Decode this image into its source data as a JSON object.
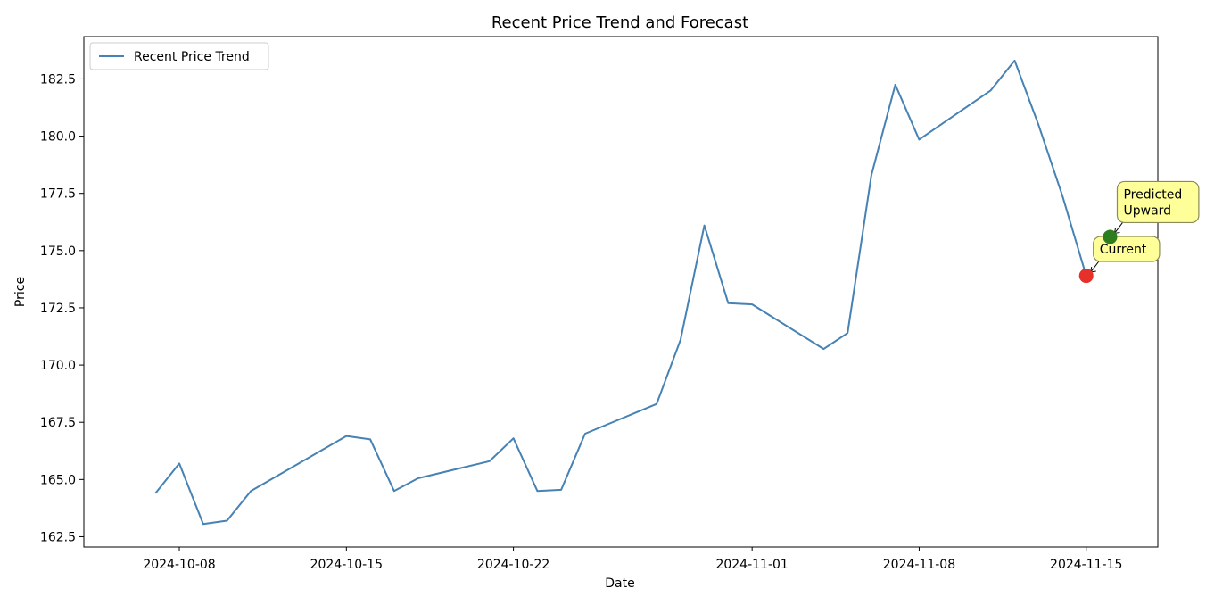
{
  "chart_data": {
    "type": "line",
    "title": "Recent Price Trend and Forecast",
    "xlabel": "Date",
    "ylabel": "Price",
    "x_range": [
      "2024-10-04",
      "2024-11-18"
    ],
    "ylim": [
      162.05,
      184.35
    ],
    "x_ticks": [
      "2024-10-08",
      "2024-10-15",
      "2024-10-22",
      "2024-11-01",
      "2024-11-08",
      "2024-11-15"
    ],
    "y_ticks": [
      "162.5",
      "165.0",
      "167.5",
      "170.0",
      "172.5",
      "175.0",
      "177.5",
      "180.0",
      "182.5"
    ],
    "grid": false,
    "legend": {
      "placement": "upper-left",
      "entries": [
        "Recent Price Trend"
      ]
    },
    "series": [
      {
        "name": "Recent Price Trend",
        "color": "#4682b4",
        "points": [
          [
            "2024-10-07",
            164.4
          ],
          [
            "2024-10-08",
            165.7
          ],
          [
            "2024-10-09",
            163.05
          ],
          [
            "2024-10-10",
            163.2
          ],
          [
            "2024-10-11",
            164.5
          ],
          [
            "2024-10-14",
            166.3
          ],
          [
            "2024-10-15",
            166.9
          ],
          [
            "2024-10-16",
            166.75
          ],
          [
            "2024-10-17",
            164.5
          ],
          [
            "2024-10-18",
            165.05
          ],
          [
            "2024-10-21",
            165.8
          ],
          [
            "2024-10-22",
            166.8
          ],
          [
            "2024-10-23",
            164.5
          ],
          [
            "2024-10-24",
            164.55
          ],
          [
            "2024-10-25",
            167.0
          ],
          [
            "2024-10-28",
            168.3
          ],
          [
            "2024-10-29",
            171.1
          ],
          [
            "2024-10-30",
            176.1
          ],
          [
            "2024-10-31",
            172.7
          ],
          [
            "2024-11-01",
            172.65
          ],
          [
            "2024-11-04",
            170.7
          ],
          [
            "2024-11-05",
            171.4
          ],
          [
            "2024-11-06",
            178.3
          ],
          [
            "2024-11-07",
            182.25
          ],
          [
            "2024-11-08",
            179.85
          ],
          [
            "2024-11-11",
            182.0
          ],
          [
            "2024-11-12",
            183.3
          ],
          [
            "2024-11-13",
            180.5
          ],
          [
            "2024-11-14",
            177.4
          ],
          [
            "2024-11-15",
            173.9
          ]
        ]
      }
    ],
    "markers": [
      {
        "label": "Current",
        "x": "2024-11-15",
        "y": 173.9,
        "color": "#e8302a"
      },
      {
        "label": "Predicted\nUpward",
        "x": "2024-11-16",
        "y": 175.6,
        "color": "#2e7d1f"
      }
    ],
    "annotation_box_color": "#ffff99"
  }
}
